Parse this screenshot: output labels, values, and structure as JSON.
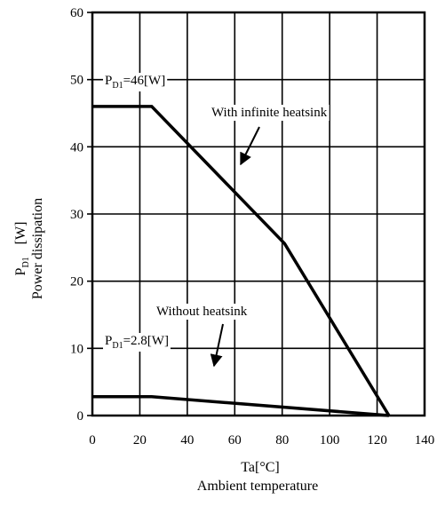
{
  "chart_data": {
    "type": "line",
    "xlabel": "Ta[°C]",
    "xlabel_sub": "Ambient temperature",
    "ylabel_symbol": "P",
    "ylabel_subscript": "D1",
    "ylabel_unit": "[W]",
    "ylabel_sub": "Power dissipation",
    "xlim": [
      0,
      140
    ],
    "ylim": [
      0,
      60
    ],
    "x_ticks": [
      "0",
      "20",
      "40",
      "60",
      "80",
      "100",
      "120",
      "140"
    ],
    "y_ticks": [
      "0",
      "10",
      "20",
      "30",
      "40",
      "50",
      "60"
    ],
    "grid": true,
    "series": [
      {
        "name": "With infinite heatsink",
        "x": [
          0,
          25,
          81,
          125
        ],
        "y": [
          46,
          46,
          25.6,
          0
        ]
      },
      {
        "name": "Without heatsink",
        "x": [
          0,
          25,
          125
        ],
        "y": [
          2.8,
          2.8,
          0
        ]
      }
    ],
    "annotations": [
      {
        "id": "pd46",
        "prefix": "P",
        "sub": "D1",
        "suffix": "=46[W]"
      },
      {
        "id": "pd28",
        "prefix": "P",
        "sub": "D1",
        "suffix": "=2.8[W]"
      },
      {
        "id": "infinite",
        "text": "With infinite heatsink"
      },
      {
        "id": "without",
        "text": "Without heatsink"
      }
    ]
  }
}
